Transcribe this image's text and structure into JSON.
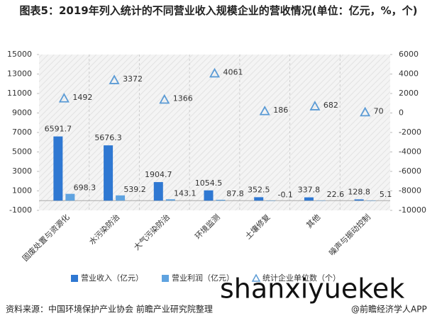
{
  "chart_data": {
    "type": "bar",
    "title": "图表5：2019年列入统计的不同营业收入规模企业的营收情况(单位：亿元，%，个)",
    "categories": [
      "固废处置与资源化",
      "水污染防治",
      "大气污染防治",
      "环境监测",
      "土壤修复",
      "其他",
      "噪声与振动控制"
    ],
    "series": [
      {
        "name": "营业收入（亿元）",
        "color": "#2f78d2",
        "values": [
          6591.7,
          5676.3,
          1904.7,
          1054.5,
          352.5,
          337.8,
          128.8
        ]
      },
      {
        "name": "营业利润（亿元）",
        "color": "#5fa3e0",
        "values": [
          698.3,
          539.2,
          143.1,
          87.8,
          -0.1,
          22.6,
          5.1
        ]
      },
      {
        "name": "统计企业单位数（个）",
        "color": "#5b9bd5",
        "axis": "y2",
        "marker": "triangle",
        "values": [
          1492,
          3372,
          1366,
          4061,
          186,
          682,
          70
        ]
      }
    ],
    "ylim": [
      -1000,
      15000
    ],
    "yticks": [
      -1000,
      1000,
      3000,
      5000,
      7000,
      9000,
      11000,
      13000,
      15000
    ],
    "y2lim": [
      -10000,
      6000
    ],
    "y2ticks": [
      -10000,
      -8000,
      -6000,
      -4000,
      -2000,
      0,
      2000,
      4000,
      6000
    ],
    "source": "资料来源：中国环境保护产业协会 前瞻产业研究院整理",
    "brand": "@前瞻经济学人APP",
    "watermark": "shanxiyuekek"
  }
}
